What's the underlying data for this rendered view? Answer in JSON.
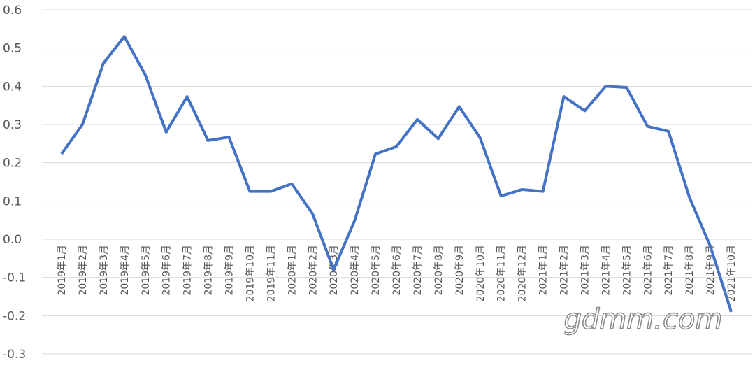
{
  "chart_data": {
    "type": "line",
    "categories": [
      "2019年1月",
      "2019年2月",
      "2019年3月",
      "2019年4月",
      "2019年5月",
      "2019年6月",
      "2019年7月",
      "2019年8月",
      "2019年9月",
      "2019年10月",
      "2019年11月",
      "2020年1月",
      "2020年2月",
      "2020年3月",
      "2020年4月",
      "2020年5月",
      "2020年6月",
      "2020年7月",
      "2020年8月",
      "2020年9月",
      "2020年10月",
      "2020年11月",
      "2020年12月",
      "2021年1月",
      "2021年2月",
      "2021年3月",
      "2021年4月",
      "2021年5月",
      "2021年6月",
      "2021年7月",
      "2021年8月",
      "2021年9月",
      "2021年10月"
    ],
    "series": [
      {
        "color": "#4472c4",
        "values": [
          0.223,
          0.3,
          0.46,
          0.53,
          0.43,
          0.28,
          0.373,
          0.258,
          0.267,
          0.125,
          0.125,
          0.145,
          0.066,
          -0.08,
          0.048,
          0.223,
          0.242,
          0.313,
          0.263,
          0.347,
          0.265,
          0.113,
          0.13,
          0.125,
          0.373,
          0.336,
          0.4,
          0.397,
          0.295,
          0.282,
          0.11,
          -0.018,
          -0.19
        ]
      }
    ],
    "ylim": [
      -0.3,
      0.6
    ],
    "yticks": [
      -0.3,
      -0.2,
      -0.1,
      {
        "value": 0,
        "label": "0.0"
      },
      0.1,
      0.2,
      0.3,
      0.4,
      0.5,
      0.6
    ],
    "grid": true,
    "watermark": "gdmm.com"
  }
}
